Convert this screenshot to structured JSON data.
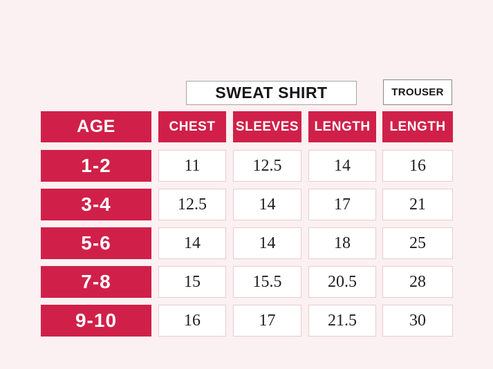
{
  "page": {
    "background": "#fbf0f2"
  },
  "colors": {
    "accent_crimson": "#d02049",
    "value_box_border": "#e7cdd3",
    "title_box_border": "#a9a2a6",
    "text_dark": "#201d20",
    "text_light": "#ffffff",
    "box_background": "#ffffff"
  },
  "titles": {
    "sweatshirt": "SWEAT SHIRT",
    "trouser": "TROUSER"
  },
  "table": {
    "headers": {
      "age": "AGE",
      "chest": "CHEST",
      "sleeves": "SLEEVES",
      "length": "LENGTH",
      "trouser_length": "LENGTH"
    },
    "rows": [
      {
        "age": "1-2",
        "chest": "11",
        "sleeves": "12.5",
        "length": "14",
        "trouser_length": "16"
      },
      {
        "age": "3-4",
        "chest": "12.5",
        "sleeves": "14",
        "length": "17",
        "trouser_length": "21"
      },
      {
        "age": "5-6",
        "chest": "14",
        "sleeves": "14",
        "length": "18",
        "trouser_length": "25"
      },
      {
        "age": "7-8",
        "chest": "15",
        "sleeves": "15.5",
        "length": "20.5",
        "trouser_length": "28"
      },
      {
        "age": "9-10",
        "chest": "16",
        "sleeves": "17",
        "length": "21.5",
        "trouser_length": "30"
      }
    ]
  },
  "chart_data": {
    "type": "table",
    "title": "SWEAT SHIRT / TROUSER size chart by age",
    "columns": [
      "AGE",
      "SWEAT SHIRT CHEST",
      "SWEAT SHIRT SLEEVES",
      "SWEAT SHIRT LENGTH",
      "TROUSER LENGTH"
    ],
    "rows": [
      [
        "1-2",
        11,
        12.5,
        14,
        16
      ],
      [
        "3-4",
        12.5,
        14,
        17,
        21
      ],
      [
        "5-6",
        14,
        14,
        18,
        25
      ],
      [
        "7-8",
        15,
        15.5,
        20.5,
        28
      ],
      [
        "9-10",
        16,
        17,
        21.5,
        30
      ]
    ]
  }
}
